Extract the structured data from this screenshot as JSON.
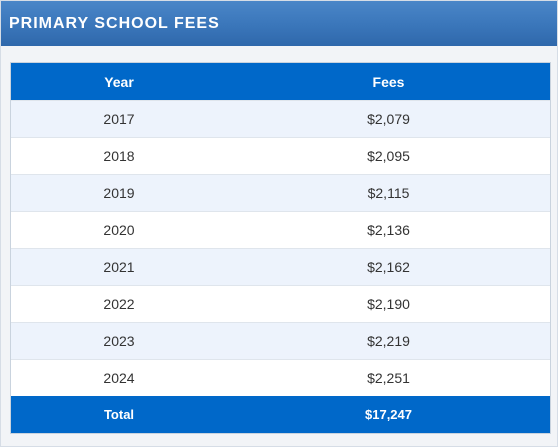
{
  "header": {
    "title": "PRIMARY SCHOOL FEES"
  },
  "table": {
    "columns": [
      "Year",
      "Fees"
    ],
    "rows": [
      {
        "year": "2017",
        "fees": "$2,079"
      },
      {
        "year": "2018",
        "fees": "$2,095"
      },
      {
        "year": "2019",
        "fees": "$2,115"
      },
      {
        "year": "2020",
        "fees": "$2,136"
      },
      {
        "year": "2021",
        "fees": "$2,162"
      },
      {
        "year": "2022",
        "fees": "$2,190"
      },
      {
        "year": "2023",
        "fees": "$2,219"
      },
      {
        "year": "2024",
        "fees": "$2,251"
      }
    ],
    "footer": {
      "label": "Total",
      "value": "$17,247"
    }
  },
  "colors": {
    "header_gradient_top": "#4a86c8",
    "table_header_bg": "#0068c9",
    "striped_row_bg": "#edf3fc"
  }
}
